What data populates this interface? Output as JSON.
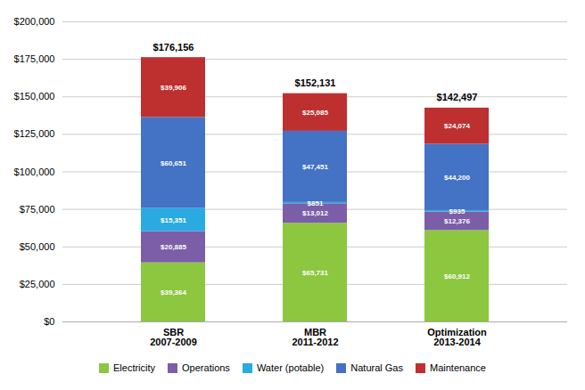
{
  "chart_data": {
    "type": "bar",
    "stacked": true,
    "data_labels": true,
    "grid": true,
    "legend": "bottom",
    "categories": [
      "SBR\n2007-2009",
      "MBR\n2011-2012",
      "Optimization\n2013-2014"
    ],
    "series": [
      {
        "name": "Electricity",
        "color": "#8DC63F",
        "values": [
          39364,
          65731,
          60912
        ],
        "value_labels": [
          "$39,364",
          "$65,731",
          "$60,912"
        ]
      },
      {
        "name": "Operations",
        "color": "#7B5EA7",
        "values": [
          20885,
          13012,
          12376
        ],
        "value_labels": [
          "$20,885",
          "$13,012",
          "$12,376"
        ]
      },
      {
        "name": "Water (potable)",
        "color": "#29ABE2",
        "values": [
          15351,
          851,
          935
        ],
        "value_labels": [
          "$15,351",
          "$851",
          "$935"
        ]
      },
      {
        "name": "Natural Gas",
        "color": "#4472C4",
        "values": [
          60651,
          47451,
          44200
        ],
        "value_labels": [
          "$60,651",
          "$47,451",
          "$44,200"
        ]
      },
      {
        "name": "Maintenance",
        "color": "#BE3030",
        "values": [
          39906,
          25085,
          24074
        ],
        "value_labels": [
          "$39,906",
          "$25,085",
          "$24,074"
        ]
      }
    ],
    "annotations": [
      {
        "text": "$176,156",
        "x": "SBR\n2007-2009",
        "y": 176156
      },
      {
        "text": "$152,131",
        "x": "MBR\n2011-2012",
        "y": 152131
      },
      {
        "text": "$142,497",
        "x": "Optimization\n2013-2014",
        "y": 142497
      }
    ],
    "ylim": [
      0,
      200000
    ],
    "yticks": [
      {
        "value": 0,
        "label": "$0"
      },
      {
        "value": 25000,
        "label": "$25,000"
      },
      {
        "value": 50000,
        "label": "$50,000"
      },
      {
        "value": 75000,
        "label": "$75,000"
      },
      {
        "value": 100000,
        "label": "$100,000"
      },
      {
        "value": 125000,
        "label": "$125,000"
      },
      {
        "value": 150000,
        "label": "$150,000"
      },
      {
        "value": 175000,
        "label": "$175,000"
      },
      {
        "value": 200000,
        "label": "$200,000"
      }
    ]
  }
}
